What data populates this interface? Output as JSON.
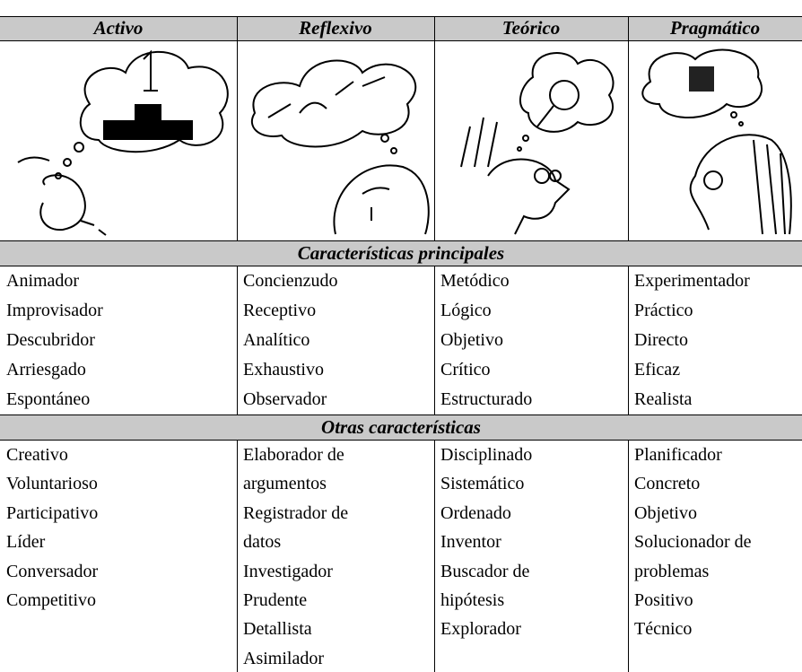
{
  "table": {
    "headers": [
      "Activo",
      "Reflexivo",
      "Teórico",
      "Pragmático"
    ],
    "sections": [
      {
        "title": "Características principales",
        "columns": [
          [
            "Animador",
            "Improvisador",
            "Descubridor",
            "Arriesgado",
            "Espontáneo"
          ],
          [
            "Concienzudo",
            "Receptivo",
            "Analítico",
            "Exhaustivo",
            "Observador"
          ],
          [
            "Metódico",
            "Lógico",
            "Objetivo",
            "Crítico",
            "Estructurado"
          ],
          [
            "Experimentador",
            "Práctico",
            "Directo",
            "Eficaz",
            "Realista"
          ]
        ]
      },
      {
        "title": "Otras características",
        "columns": [
          [
            "Creativo",
            "Voluntarioso",
            "Participativo",
            "Líder",
            "Conversador",
            "Competitivo"
          ],
          [
            "Elaborador de",
            "argumentos",
            "Registrador de",
            "datos",
            "Investigador",
            "Prudente",
            "Detallista",
            "Asimilador"
          ],
          [
            "Disciplinado",
            "Sistemático",
            "Ordenado",
            "Inventor",
            "Buscador de",
            "hipótesis",
            "Explorador"
          ],
          [
            "Planificador",
            "Concreto",
            "Objetivo",
            "Solucionador de",
            "problemas",
            "Positivo",
            "Técnico"
          ]
        ]
      }
    ]
  }
}
